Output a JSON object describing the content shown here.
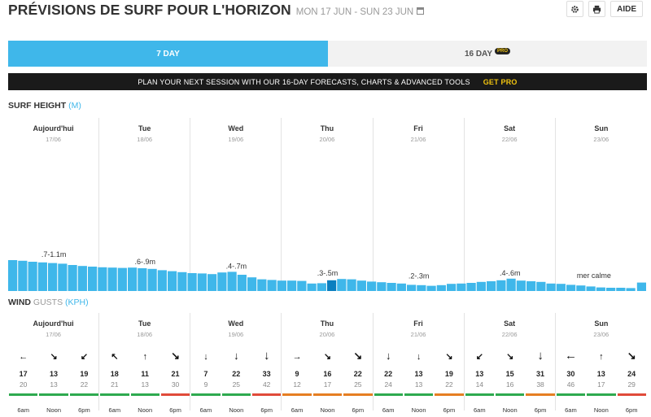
{
  "header": {
    "title": "PRÉVISIONS DE SURF POUR L'HORIZON",
    "dates": "MON 17 JUN - SUN 23 JUN",
    "help_label": "AIDE"
  },
  "tabs": [
    {
      "label": "7 DAY",
      "active": true
    },
    {
      "label": "16 DAY",
      "badge": "PRO",
      "active": false
    }
  ],
  "promo": {
    "text": "PLAN YOUR NEXT SESSION WITH OUR 16-DAY FORECASTS, CHARTS & ADVANCED TOOLS",
    "cta": "GET PRO"
  },
  "surf": {
    "title": "SURF HEIGHT",
    "unit": "(M)",
    "days": [
      {
        "name": "Aujourd'hui",
        "date": "17/06",
        "range": ".7-1.1m"
      },
      {
        "name": "Tue",
        "date": "18/06",
        "range": ".6-.9m"
      },
      {
        "name": "Wed",
        "date": "19/06",
        "range": ".4-.7m"
      },
      {
        "name": "Thu",
        "date": "20/06",
        "range": ".3-.5m"
      },
      {
        "name": "Fri",
        "date": "21/06",
        "range": ".2-.3m"
      },
      {
        "name": "Sat",
        "date": "22/06",
        "range": ".4-.6m"
      },
      {
        "name": "Sun",
        "date": "23/06",
        "range": "mer calme"
      }
    ],
    "heights": [
      0.95,
      0.93,
      0.9,
      0.88,
      0.86,
      0.84,
      0.8,
      0.77,
      0.75,
      0.73,
      0.72,
      0.71,
      0.72,
      0.7,
      0.68,
      0.64,
      0.61,
      0.58,
      0.55,
      0.54,
      0.52,
      0.57,
      0.59,
      0.5,
      0.42,
      0.36,
      0.34,
      0.32,
      0.32,
      0.31,
      0.23,
      0.24,
      0.33,
      0.37,
      0.36,
      0.32,
      0.29,
      0.27,
      0.25,
      0.23,
      0.19,
      0.18,
      0.16,
      0.18,
      0.22,
      0.23,
      0.25,
      0.28,
      0.3,
      0.33,
      0.38,
      0.32,
      0.3,
      0.28,
      0.23,
      0.22,
      0.19,
      0.17,
      0.14,
      0.11,
      0.1,
      0.1,
      0.09,
      0.26
    ],
    "highlight_index": 32
  },
  "wind": {
    "title": "WIND",
    "subtitle": "GUSTS",
    "unit": "(KPH)",
    "days": [
      {
        "name": "Aujourd'hui",
        "date": "17/06"
      },
      {
        "name": "Tue",
        "date": "18/06"
      },
      {
        "name": "Wed",
        "date": "19/06"
      },
      {
        "name": "Thu",
        "date": "20/06"
      },
      {
        "name": "Fri",
        "date": "21/06"
      },
      {
        "name": "Sat",
        "date": "22/06"
      },
      {
        "name": "Sun",
        "date": "23/06"
      }
    ],
    "slots": [
      {
        "time": "6am",
        "speed": "17",
        "gust": "20",
        "arrow": "←",
        "rating": "good"
      },
      {
        "time": "Noon",
        "speed": "13",
        "gust": "13",
        "arrow": "↘",
        "rating": "good"
      },
      {
        "time": "6pm",
        "speed": "19",
        "gust": "22",
        "arrow": "↙",
        "rating": "good"
      },
      {
        "time": "6am",
        "speed": "18",
        "gust": "21",
        "arrow": "↖",
        "rating": "good"
      },
      {
        "time": "Noon",
        "speed": "11",
        "gust": "13",
        "arrow": "↑",
        "rating": "good"
      },
      {
        "time": "6pm",
        "speed": "21",
        "gust": "30",
        "arrow": "↘",
        "rating": "bad"
      },
      {
        "time": "6am",
        "speed": "7",
        "gust": "9",
        "arrow": "↓",
        "rating": "good"
      },
      {
        "time": "Noon",
        "speed": "22",
        "gust": "25",
        "arrow": "↓",
        "rating": "good"
      },
      {
        "time": "6pm",
        "speed": "33",
        "gust": "42",
        "arrow": "↓",
        "rating": "bad"
      },
      {
        "time": "6am",
        "speed": "9",
        "gust": "12",
        "arrow": "→",
        "rating": "fair"
      },
      {
        "time": "Noon",
        "speed": "16",
        "gust": "17",
        "arrow": "↘",
        "rating": "fair"
      },
      {
        "time": "6pm",
        "speed": "22",
        "gust": "25",
        "arrow": "↘",
        "rating": "fair"
      },
      {
        "time": "6am",
        "speed": "22",
        "gust": "24",
        "arrow": "↓",
        "rating": "good"
      },
      {
        "time": "Noon",
        "speed": "13",
        "gust": "13",
        "arrow": "↓",
        "rating": "good"
      },
      {
        "time": "6pm",
        "speed": "19",
        "gust": "22",
        "arrow": "↘",
        "rating": "fair"
      },
      {
        "time": "6am",
        "speed": "13",
        "gust": "14",
        "arrow": "↙",
        "rating": "good"
      },
      {
        "time": "Noon",
        "speed": "15",
        "gust": "16",
        "arrow": "↘",
        "rating": "good"
      },
      {
        "time": "6pm",
        "speed": "31",
        "gust": "38",
        "arrow": "↓",
        "rating": "fair"
      },
      {
        "time": "6am",
        "speed": "30",
        "gust": "46",
        "arrow": "←",
        "rating": "good"
      },
      {
        "time": "Noon",
        "speed": "13",
        "gust": "17",
        "arrow": "↑",
        "rating": "good"
      },
      {
        "time": "6pm",
        "speed": "24",
        "gust": "29",
        "arrow": "↘",
        "rating": "bad"
      }
    ]
  },
  "colors": {
    "accent": "#3fb7ea",
    "bar": "#3fb7ea",
    "bar_highlight": "#0b7fbf",
    "good": "#2eaa4f",
    "fair": "#e67e22",
    "bad": "#e04b3a"
  }
}
